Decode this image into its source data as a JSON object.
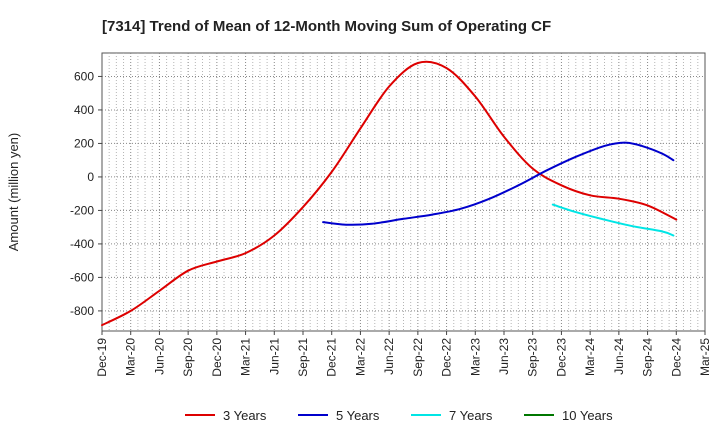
{
  "chart_data": {
    "type": "line",
    "title": "[7314]  Trend of Mean of 12-Month Moving Sum of Operating CF",
    "xlabel": "",
    "ylabel": "Amount (million yen)",
    "ylim": [
      -920,
      740
    ],
    "y_ticks": [
      600,
      400,
      200,
      0,
      -200,
      -400,
      -600,
      -800
    ],
    "x_tick_labels": [
      "Dec-19",
      "Mar-20",
      "Jun-20",
      "Sep-20",
      "Dec-20",
      "Mar-21",
      "Jun-21",
      "Sep-21",
      "Dec-21",
      "Mar-22",
      "Jun-22",
      "Sep-22",
      "Dec-22",
      "Mar-23",
      "Jun-23",
      "Sep-23",
      "Dec-23",
      "Mar-24",
      "Jun-24",
      "Sep-24",
      "Dec-24",
      "Mar-25"
    ],
    "x_count": 22,
    "grid": true,
    "legend_position": "bottom",
    "series": [
      {
        "name": "3 Years",
        "color": "#dd0000",
        "points": [
          [
            0,
            -885
          ],
          [
            1,
            -800
          ],
          [
            2,
            -680
          ],
          [
            3,
            -560
          ],
          [
            4,
            -505
          ],
          [
            5,
            -455
          ],
          [
            6,
            -350
          ],
          [
            7,
            -180
          ],
          [
            8,
            30
          ],
          [
            9,
            290
          ],
          [
            10,
            540
          ],
          [
            11,
            680
          ],
          [
            12,
            650
          ],
          [
            13,
            480
          ],
          [
            14,
            240
          ],
          [
            15,
            50
          ],
          [
            16,
            -50
          ],
          [
            17,
            -110
          ],
          [
            18,
            -130
          ],
          [
            19,
            -170
          ],
          [
            20,
            -255
          ]
        ]
      },
      {
        "name": "5 Years",
        "color": "#0000cc",
        "points": [
          [
            7.7,
            -270
          ],
          [
            8.5,
            -285
          ],
          [
            9.4,
            -280
          ],
          [
            10.5,
            -250
          ],
          [
            11.5,
            -225
          ],
          [
            12.5,
            -190
          ],
          [
            13.5,
            -130
          ],
          [
            14.5,
            -50
          ],
          [
            15.5,
            40
          ],
          [
            16.5,
            120
          ],
          [
            17.5,
            185
          ],
          [
            18.2,
            205
          ],
          [
            18.8,
            185
          ],
          [
            19.5,
            140
          ],
          [
            19.9,
            100
          ]
        ]
      },
      {
        "name": "7 Years",
        "color": "#00e5e5",
        "points": [
          [
            15.7,
            -165
          ],
          [
            16.5,
            -210
          ],
          [
            17.5,
            -255
          ],
          [
            18.5,
            -295
          ],
          [
            19.5,
            -325
          ],
          [
            19.9,
            -350
          ]
        ]
      },
      {
        "name": "10 Years",
        "color": "#007700",
        "points": []
      }
    ]
  }
}
